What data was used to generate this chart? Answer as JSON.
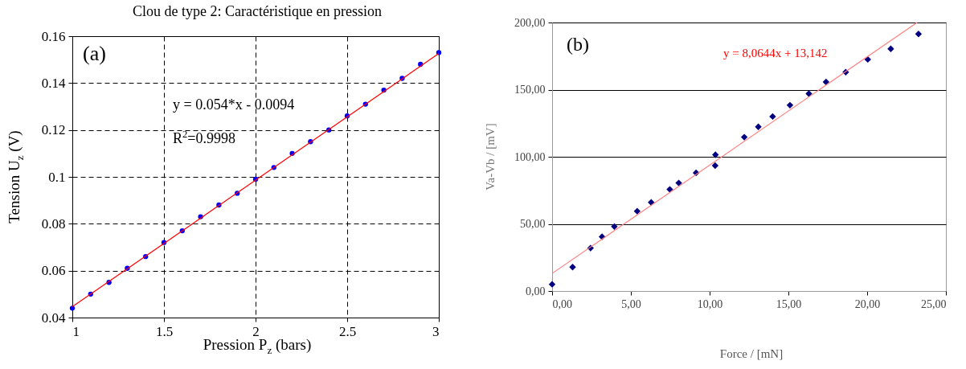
{
  "chart_data": [
    {
      "type": "scatter",
      "title": "Clou de type 2: Caractéristique en pression",
      "xlabel": "Pression P$_{z}$ (bars)",
      "ylabel": "Tension U$_{z}$ (V)",
      "annotations": [
        "(a)",
        "y = 0.054*x - 0.0094",
        "R$^{2}$=0.9998"
      ],
      "x": [
        1,
        1.1,
        1.2,
        1.3,
        1.4,
        1.5,
        1.6,
        1.7,
        1.8,
        1.9,
        2,
        2.1,
        2.2,
        2.3,
        2.4,
        2.5,
        2.6,
        2.7,
        2.8,
        2.9,
        3
      ],
      "series": [
        {
          "color": "#0000ff",
          "values": [
            0.044,
            0.05,
            0.055,
            0.061,
            0.066,
            0.072,
            0.077,
            0.083,
            0.088,
            0.093,
            0.099,
            0.104,
            0.11,
            0.115,
            0.12,
            0.126,
            0.131,
            0.137,
            0.142,
            0.148,
            0.153
          ]
        },
        {
          "type": "line",
          "color": "#ff0000",
          "marker": "none",
          "x": [
            1,
            3
          ],
          "values": [
            0.0446,
            0.1526
          ]
        }
      ],
      "xlim": [
        1,
        3
      ],
      "ylim": [
        0.04,
        0.16
      ],
      "xticks": [
        1,
        1.5,
        2,
        2.5,
        3
      ],
      "yticks": [
        0.04,
        0.06,
        0.08,
        0.1,
        0.12,
        0.14,
        0.16
      ],
      "grid": true,
      "marker": "circle"
    },
    {
      "type": "scatter",
      "xlabel": "Force / [mN]",
      "ylabel": "Va-Vb / [mV]",
      "annotations": [
        "(b)",
        "y = 8,0644x + 13,142"
      ],
      "x": [
        0,
        1.3,
        2.44,
        3.17,
        3.95,
        5.4,
        6.29,
        7.47,
        8.04,
        9.14,
        10.35,
        10.37,
        12.2,
        13.09,
        14.0,
        15.1,
        16.3,
        17.39,
        18.64,
        20.04,
        21.5,
        23.26
      ],
      "series": [
        {
          "color": "#000080",
          "values": [
            5,
            17.8,
            32,
            40.4,
            48,
            59.5,
            66,
            75.7,
            80.5,
            88,
            93.4,
            101.5,
            114.6,
            122.3,
            130,
            138.4,
            147,
            155.7,
            163,
            172.5,
            180.4,
            191.5
          ]
        },
        {
          "type": "line",
          "color": "#ff7f7f",
          "marker": "none",
          "x": [
            0,
            23.17
          ],
          "values": [
            13.1,
            200
          ]
        }
      ],
      "xlim": [
        0,
        25
      ],
      "ylim": [
        0,
        200
      ],
      "xticks": [
        {
          "value": 0,
          "label": "0,00"
        },
        {
          "value": 5,
          "label": "5,00"
        },
        {
          "value": 10,
          "label": "10,00"
        },
        {
          "value": 15,
          "label": "15,00"
        },
        {
          "value": 20,
          "label": "20,00"
        },
        {
          "value": 25,
          "label": "25,00"
        }
      ],
      "yticks": [
        {
          "value": 0,
          "label": "0,00"
        },
        {
          "value": 50,
          "label": "50,00"
        },
        {
          "value": 100,
          "label": "100,00"
        },
        {
          "value": 150,
          "label": "150,00"
        },
        {
          "value": 200,
          "label": "200,00"
        }
      ],
      "grid": "y",
      "marker": "diamond"
    }
  ]
}
